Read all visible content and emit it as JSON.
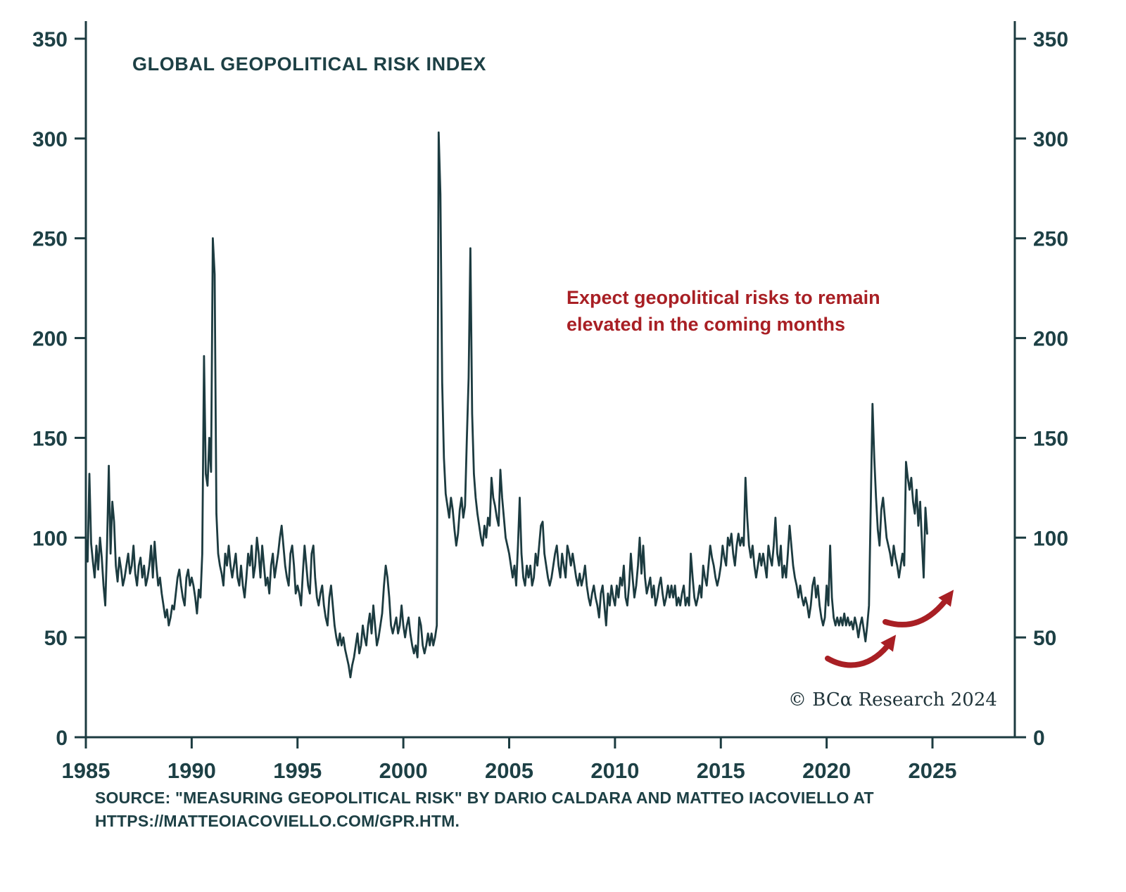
{
  "chart_data": {
    "type": "line",
    "title": "GLOBAL GEOPOLITICAL RISK INDEX",
    "series_name": "Global Geopolitical Risk Index (monthly)",
    "xlabel": "",
    "ylabel": "",
    "start_year": 1985,
    "points_per_year": 12,
    "xticks": [
      1985,
      1990,
      1995,
      2000,
      2005,
      2010,
      2015,
      2020,
      2025
    ],
    "yticks": [
      0,
      50,
      100,
      150,
      200,
      250,
      300,
      350
    ],
    "xlim": [
      1985,
      2025
    ],
    "ylim": [
      0,
      350
    ],
    "grid": false,
    "legend": "none",
    "values": [
      100,
      88,
      132,
      97,
      88,
      80,
      96,
      84,
      100,
      90,
      76,
      66,
      96,
      136,
      92,
      118,
      108,
      86,
      78,
      90,
      84,
      76,
      80,
      86,
      92,
      82,
      86,
      96,
      82,
      76,
      86,
      90,
      80,
      86,
      76,
      80,
      86,
      96,
      80,
      98,
      86,
      76,
      80,
      72,
      66,
      60,
      64,
      56,
      60,
      66,
      64,
      72,
      80,
      84,
      76,
      70,
      66,
      80,
      84,
      76,
      80,
      76,
      70,
      62,
      74,
      70,
      92,
      191,
      132,
      126,
      150,
      133,
      250,
      232,
      112,
      92,
      86,
      82,
      76,
      92,
      86,
      96,
      86,
      80,
      86,
      92,
      80,
      76,
      86,
      76,
      70,
      80,
      92,
      86,
      96,
      80,
      86,
      100,
      92,
      80,
      96,
      86,
      76,
      80,
      72,
      86,
      92,
      80,
      86,
      92,
      100,
      106,
      96,
      86,
      80,
      76,
      92,
      96,
      86,
      72,
      76,
      72,
      66,
      82,
      96,
      86,
      76,
      72,
      92,
      96,
      80,
      70,
      66,
      72,
      76,
      66,
      60,
      56,
      70,
      76,
      66,
      56,
      50,
      46,
      52,
      46,
      50,
      44,
      40,
      36,
      30,
      36,
      40,
      46,
      52,
      42,
      46,
      56,
      50,
      46,
      56,
      62,
      52,
      66,
      56,
      46,
      50,
      56,
      62,
      76,
      86,
      80,
      70,
      56,
      52,
      56,
      60,
      52,
      56,
      66,
      56,
      50,
      56,
      60,
      52,
      46,
      42,
      46,
      40,
      60,
      56,
      46,
      42,
      46,
      52,
      46,
      52,
      46,
      50,
      56,
      303,
      272,
      178,
      140,
      122,
      116,
      110,
      120,
      114,
      104,
      96,
      102,
      114,
      120,
      110,
      116,
      150,
      180,
      245,
      162,
      132,
      120,
      112,
      106,
      100,
      96,
      106,
      100,
      110,
      106,
      130,
      120,
      116,
      110,
      106,
      134,
      120,
      110,
      100,
      96,
      92,
      86,
      80,
      86,
      76,
      96,
      120,
      92,
      80,
      76,
      86,
      80,
      86,
      76,
      80,
      92,
      86,
      96,
      106,
      108,
      92,
      86,
      80,
      76,
      80,
      86,
      92,
      96,
      86,
      80,
      92,
      86,
      80,
      96,
      92,
      86,
      92,
      86,
      80,
      76,
      82,
      76,
      80,
      86,
      76,
      70,
      66,
      72,
      76,
      70,
      66,
      60,
      72,
      76,
      66,
      56,
      72,
      66,
      76,
      70,
      66,
      76,
      70,
      80,
      76,
      86,
      70,
      66,
      76,
      92,
      80,
      70,
      76,
      86,
      100,
      82,
      96,
      80,
      72,
      76,
      80,
      70,
      76,
      66,
      70,
      76,
      80,
      72,
      66,
      70,
      76,
      70,
      76,
      70,
      76,
      66,
      70,
      66,
      72,
      76,
      66,
      70,
      66,
      92,
      80,
      70,
      66,
      70,
      76,
      70,
      86,
      80,
      76,
      86,
      96,
      90,
      86,
      80,
      76,
      80,
      86,
      96,
      90,
      86,
      100,
      96,
      102,
      92,
      86,
      96,
      102,
      96,
      100,
      96,
      130,
      110,
      96,
      90,
      96,
      86,
      80,
      86,
      92,
      86,
      92,
      86,
      80,
      96,
      90,
      86,
      96,
      110,
      92,
      86,
      96,
      80,
      86,
      80,
      92,
      106,
      96,
      86,
      80,
      76,
      70,
      76,
      70,
      66,
      70,
      66,
      60,
      66,
      76,
      80,
      70,
      76,
      66,
      60,
      56,
      60,
      76,
      66,
      96,
      70,
      60,
      56,
      60,
      56,
      60,
      56,
      62,
      56,
      60,
      56,
      58,
      54,
      60,
      56,
      50,
      56,
      60,
      54,
      48,
      56,
      66,
      116,
      167,
      140,
      120,
      104,
      96,
      114,
      120,
      110,
      100,
      96,
      92,
      86,
      96,
      90,
      86,
      80,
      86,
      92,
      86,
      138,
      130,
      124,
      130,
      118,
      112,
      124,
      106,
      118,
      98,
      80,
      115,
      102
    ]
  },
  "annotation": {
    "line1": "Expect geopolitical risks to remain",
    "line2": "elevated in the coming months"
  },
  "footer": {
    "copyright": "© BCα Research 2024",
    "source_line1": "SOURCE: \"MEASURING GEOPOLITICAL RISK\" BY DARIO CALDARA AND MATTEO IACOVIELLO AT",
    "source_line2": "HTTPS://MATTEOIACOVIELLO.COM/GPR.HTM."
  },
  "colors": {
    "line": "#1c3b40",
    "axis": "#1c3b40",
    "text": "#1d4045",
    "accent_red": "#a81f24",
    "background": "#ffffff"
  }
}
